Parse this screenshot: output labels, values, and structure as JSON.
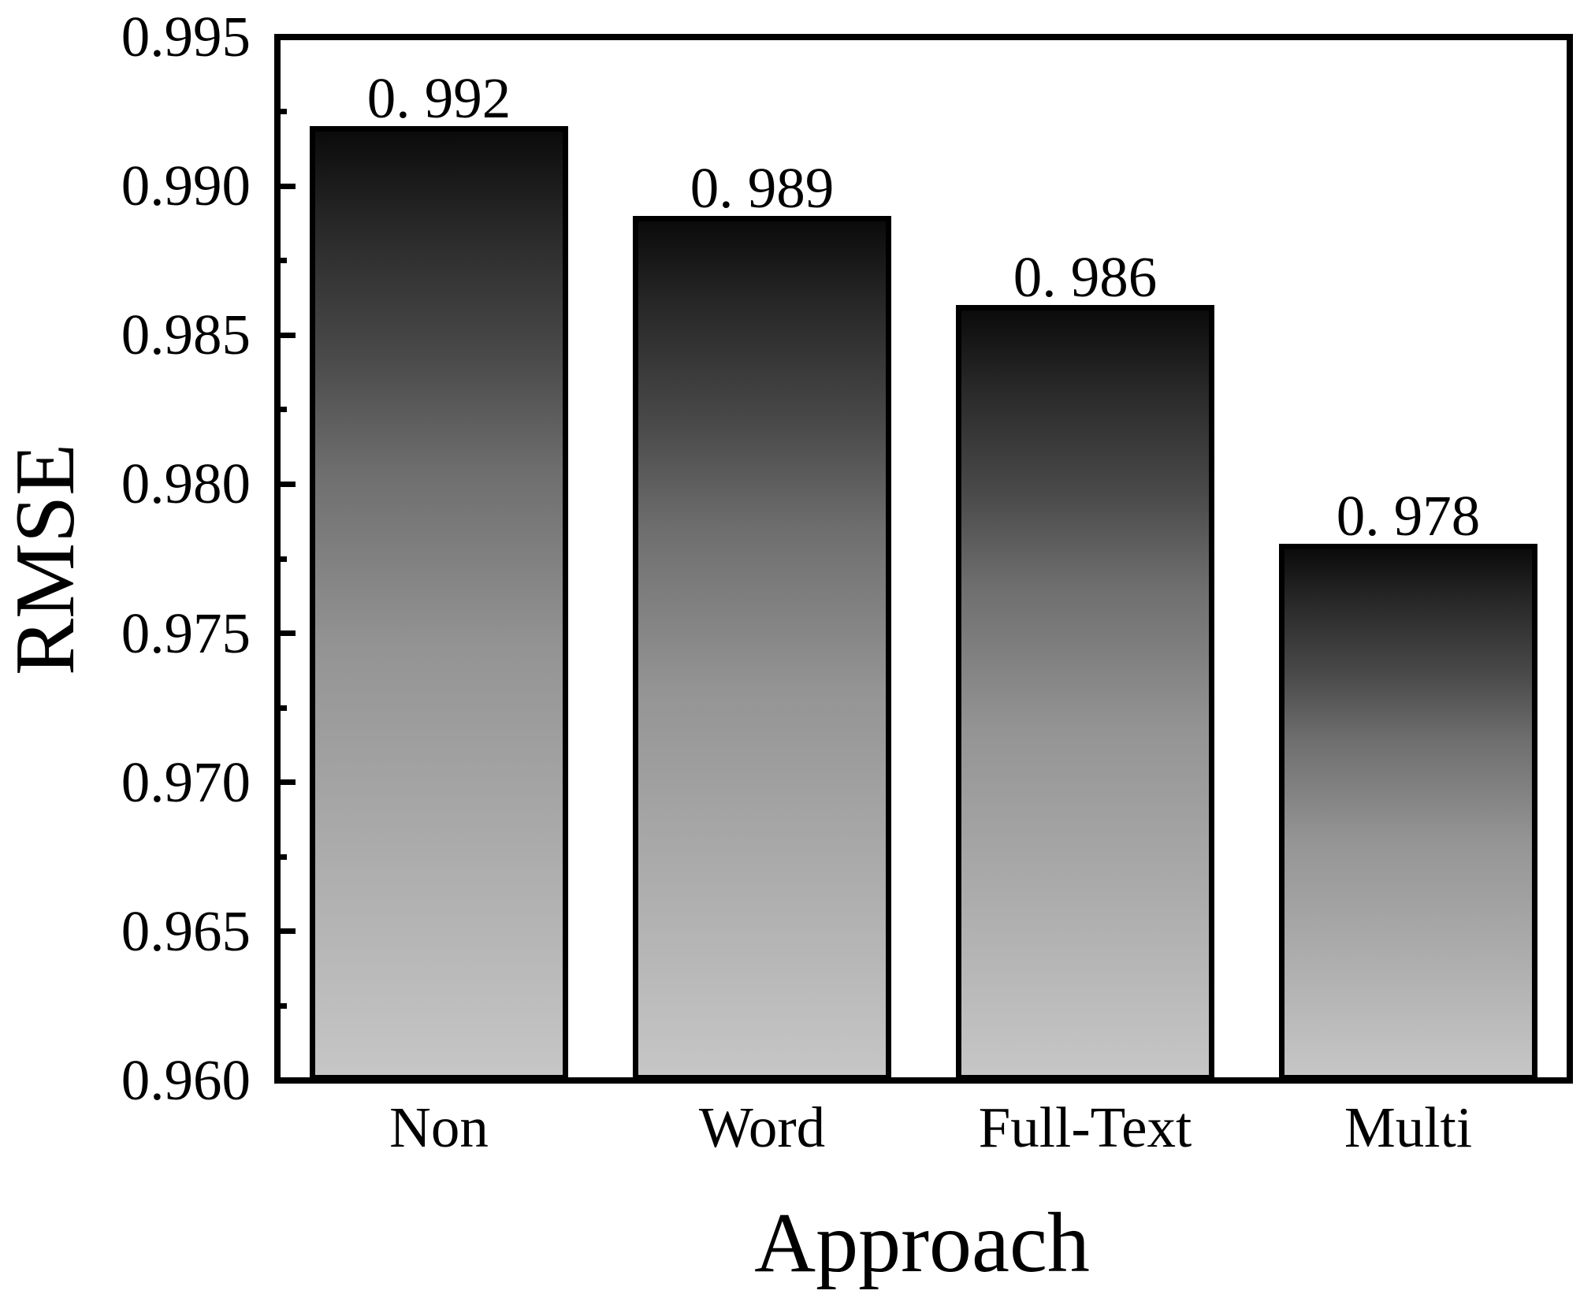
{
  "chart_data": {
    "type": "bar",
    "title": "",
    "xlabel": "Approach",
    "ylabel": "RMSE",
    "categories": [
      "Non",
      "Word",
      "Full-Text",
      "Multi"
    ],
    "values": [
      0.992,
      0.989,
      0.986,
      0.978
    ],
    "bar_value_labels": [
      "0. 992",
      "0. 989",
      "0. 986",
      "0. 978"
    ],
    "ylim": [
      0.96,
      0.995
    ],
    "y_tick_labels": [
      "0.960",
      "0.965",
      "0.970",
      "0.975",
      "0.980",
      "0.985",
      "0.990",
      "0.995"
    ],
    "y_major_step": 0.005,
    "y_minor_step": 0.0025,
    "grid": false,
    "legend": "none",
    "colors": {
      "axis": "#000000",
      "text": "#000000",
      "background": "#ffffff",
      "bar_gradient_top": "#0b0b0b",
      "bar_gradient_bottom": "#c6c6c6",
      "bar_border": "#000000"
    }
  }
}
